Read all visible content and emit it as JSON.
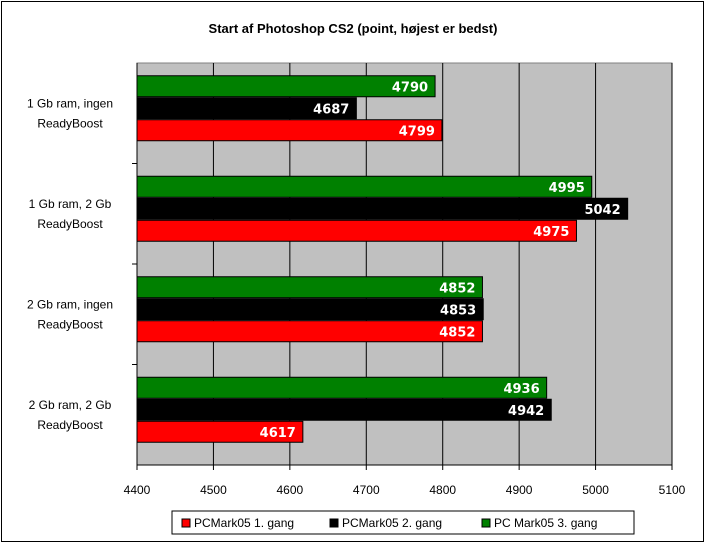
{
  "chart_data": {
    "type": "bar",
    "orientation": "horizontal",
    "title": "Start af Photoshop CS2 (point, højest er bedst)",
    "categories": [
      [
        "1 Gb ram, ingen",
        "ReadyBoost"
      ],
      [
        "1 Gb ram, 2 Gb",
        "ReadyBoost"
      ],
      [
        "2 Gb ram, ingen",
        "ReadyBoost"
      ],
      [
        "2 Gb ram, 2 Gb",
        "ReadyBoost"
      ]
    ],
    "series": [
      {
        "name": "PCMark05 1. gang",
        "color": "#ff0000",
        "values": [
          4799,
          4975,
          4852,
          4617
        ]
      },
      {
        "name": "PCMark05 2. gang",
        "color": "#000000",
        "values": [
          4687,
          5042,
          4853,
          4942
        ]
      },
      {
        "name": "PC Mark05 3. gang",
        "color": "#008000",
        "values": [
          4790,
          4995,
          4852,
          4936
        ]
      }
    ],
    "xlim": [
      4400,
      5100
    ],
    "xticks": [
      4400,
      4500,
      4600,
      4700,
      4800,
      4900,
      5000,
      5100
    ],
    "grid": true,
    "plot_background": "#c0c0c0",
    "legend_position": "bottom"
  }
}
